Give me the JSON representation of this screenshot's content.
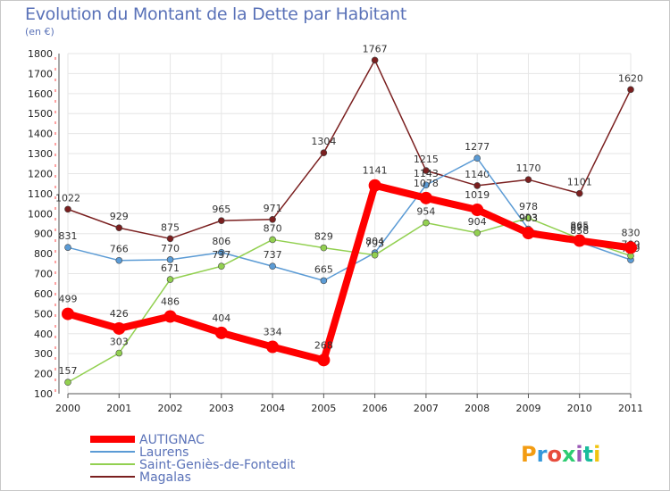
{
  "chart_data": {
    "type": "line",
    "title": "Evolution du Montant de la Dette par Habitant",
    "subtitle": "(en €)",
    "x": [
      "2000",
      "2001",
      "2002",
      "2003",
      "2004",
      "2005",
      "2006",
      "2007",
      "2008",
      "2009",
      "2010",
      "2011"
    ],
    "ylim": [
      100,
      1800
    ],
    "yticks": [
      100,
      200,
      300,
      400,
      500,
      600,
      700,
      800,
      900,
      1000,
      1100,
      1200,
      1300,
      1400,
      1500,
      1600,
      1700,
      1800
    ],
    "grid": true,
    "legend_position": "bottom",
    "series": [
      {
        "name": "Magalas",
        "color": "#7a1f1f",
        "values": [
          1022,
          929,
          875,
          965,
          971,
          1304,
          1767,
          1215,
          1140,
          1170,
          1101,
          1620
        ]
      },
      {
        "name": "Laurens",
        "color": "#5b9bd5",
        "values": [
          831,
          766,
          770,
          806,
          737,
          665,
          804,
          1143,
          1277,
          923,
          858,
          769
        ]
      },
      {
        "name": "Saint-Geniès-de-Fontedit",
        "color": "#92d050",
        "values": [
          157,
          303,
          671,
          737,
          870,
          829,
          793,
          954,
          904,
          978,
          875,
          789
        ]
      },
      {
        "name": "AUTIGNAC",
        "color": "#ff0000",
        "values": [
          499,
          426,
          486,
          404,
          334,
          268,
          1141,
          1078,
          1019,
          903,
          865,
          830
        ]
      }
    ],
    "labels_display": {
      "Magalas": [
        "1022",
        "929",
        "875",
        "965",
        "971",
        "1304",
        "1767",
        "1215",
        "1140",
        "1170",
        "1101",
        "1620"
      ],
      "Laurens": [
        "831",
        "766",
        "770",
        "806",
        "737",
        "665",
        "804",
        "1143",
        "1277",
        "923",
        "858",
        "769"
      ],
      "Saint-Geniès-de-Fontedit": [
        "157",
        "303",
        "671",
        "737",
        "870",
        "829",
        "793",
        "954",
        "904",
        "978",
        "875",
        "789"
      ],
      "AUTIGNAC": [
        "499",
        "426",
        "486",
        "404",
        "334",
        "268",
        "1141",
        "1078",
        "1019",
        "903",
        "865",
        "830"
      ]
    },
    "legend_order": [
      "AUTIGNAC",
      "Laurens",
      "Saint-Geniès-de-Fontedit",
      "Magalas"
    ]
  },
  "logo": {
    "text": "Proxiti",
    "colors": [
      "#f39c12",
      "#3498db",
      "#e74c3c",
      "#2ecc71",
      "#9b59b6",
      "#1abc9c",
      "#f1c40f"
    ]
  }
}
